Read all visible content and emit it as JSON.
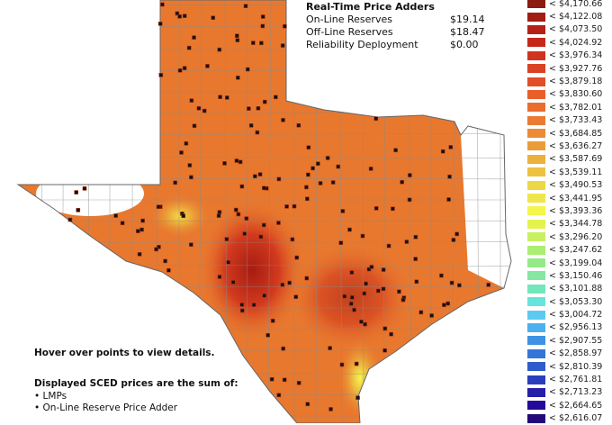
{
  "adders": {
    "title": "Real-Time Price Adders",
    "rows": [
      {
        "label": "On-Line Reserves",
        "value": "$19.14"
      },
      {
        "label": "Off-Line Reserves",
        "value": "$18.47"
      },
      {
        "label": "Reliability Deployment",
        "value": "$0.00"
      }
    ]
  },
  "legend": [
    {
      "label": "< $4,170.66",
      "color": "#8b1a10"
    },
    {
      "label": "< $4,122.08",
      "color": "#a21c12"
    },
    {
      "label": "< $4,073.50",
      "color": "#b62116"
    },
    {
      "label": "< $4,024.92",
      "color": "#c4281a"
    },
    {
      "label": "< $3,976.34",
      "color": "#cf341e"
    },
    {
      "label": "< $3,927.76",
      "color": "#d94224"
    },
    {
      "label": "< $3,879.18",
      "color": "#e04f28"
    },
    {
      "label": "< $3,830.60",
      "color": "#e95f2a"
    },
    {
      "label": "< $3,782.01",
      "color": "#ea6d30"
    },
    {
      "label": "< $3,733.43",
      "color": "#eb7a33"
    },
    {
      "label": "< $3,684.85",
      "color": "#ec8a37"
    },
    {
      "label": "< $3,636.27",
      "color": "#eb9c38"
    },
    {
      "label": "< $3,587.69",
      "color": "#ecb03c"
    },
    {
      "label": "< $3,539.11",
      "color": "#ecc23f"
    },
    {
      "label": "< $3,490.53",
      "color": "#ecd744"
    },
    {
      "label": "< $3,441.95",
      "color": "#eee64a"
    },
    {
      "label": "< $3,393.36",
      "color": "#f4f64a"
    },
    {
      "label": "< $3,344.78",
      "color": "#e2f44c"
    },
    {
      "label": "< $3,296.20",
      "color": "#c8f060"
    },
    {
      "label": "< $3,247.62",
      "color": "#aaee72"
    },
    {
      "label": "< $3,199.04",
      "color": "#94ea88"
    },
    {
      "label": "< $3,150.46",
      "color": "#84e8a0"
    },
    {
      "label": "< $3,101.88",
      "color": "#74e6bc"
    },
    {
      "label": "< $3,053.30",
      "color": "#68e4dc"
    },
    {
      "label": "< $3,004.72",
      "color": "#5ccaf0"
    },
    {
      "label": "< $2,956.13",
      "color": "#4cb0ee"
    },
    {
      "label": "< $2,907.55",
      "color": "#3e92e4"
    },
    {
      "label": "< $2,858.97",
      "color": "#3476d8"
    },
    {
      "label": "< $2,810.39",
      "color": "#2e5ccc"
    },
    {
      "label": "< $2,761.81",
      "color": "#2a3ebc"
    },
    {
      "label": "< $2,713.23",
      "color": "#2620a8"
    },
    {
      "label": "< $2,664.65",
      "color": "#240a9a"
    },
    {
      "label": "< $2,616.07",
      "color": "#24087a"
    }
  ],
  "notes": {
    "hover": "Hover over points to view details.",
    "sum_title": "Displayed SCED prices are the sum of:",
    "items": [
      "• LMPs",
      "• On-Line Reserve Price Adder"
    ]
  },
  "colors": {
    "base": "#e8782e",
    "hot": "#a61c12",
    "low": "#f4f64a",
    "county_lines": "#8a8a8a"
  }
}
